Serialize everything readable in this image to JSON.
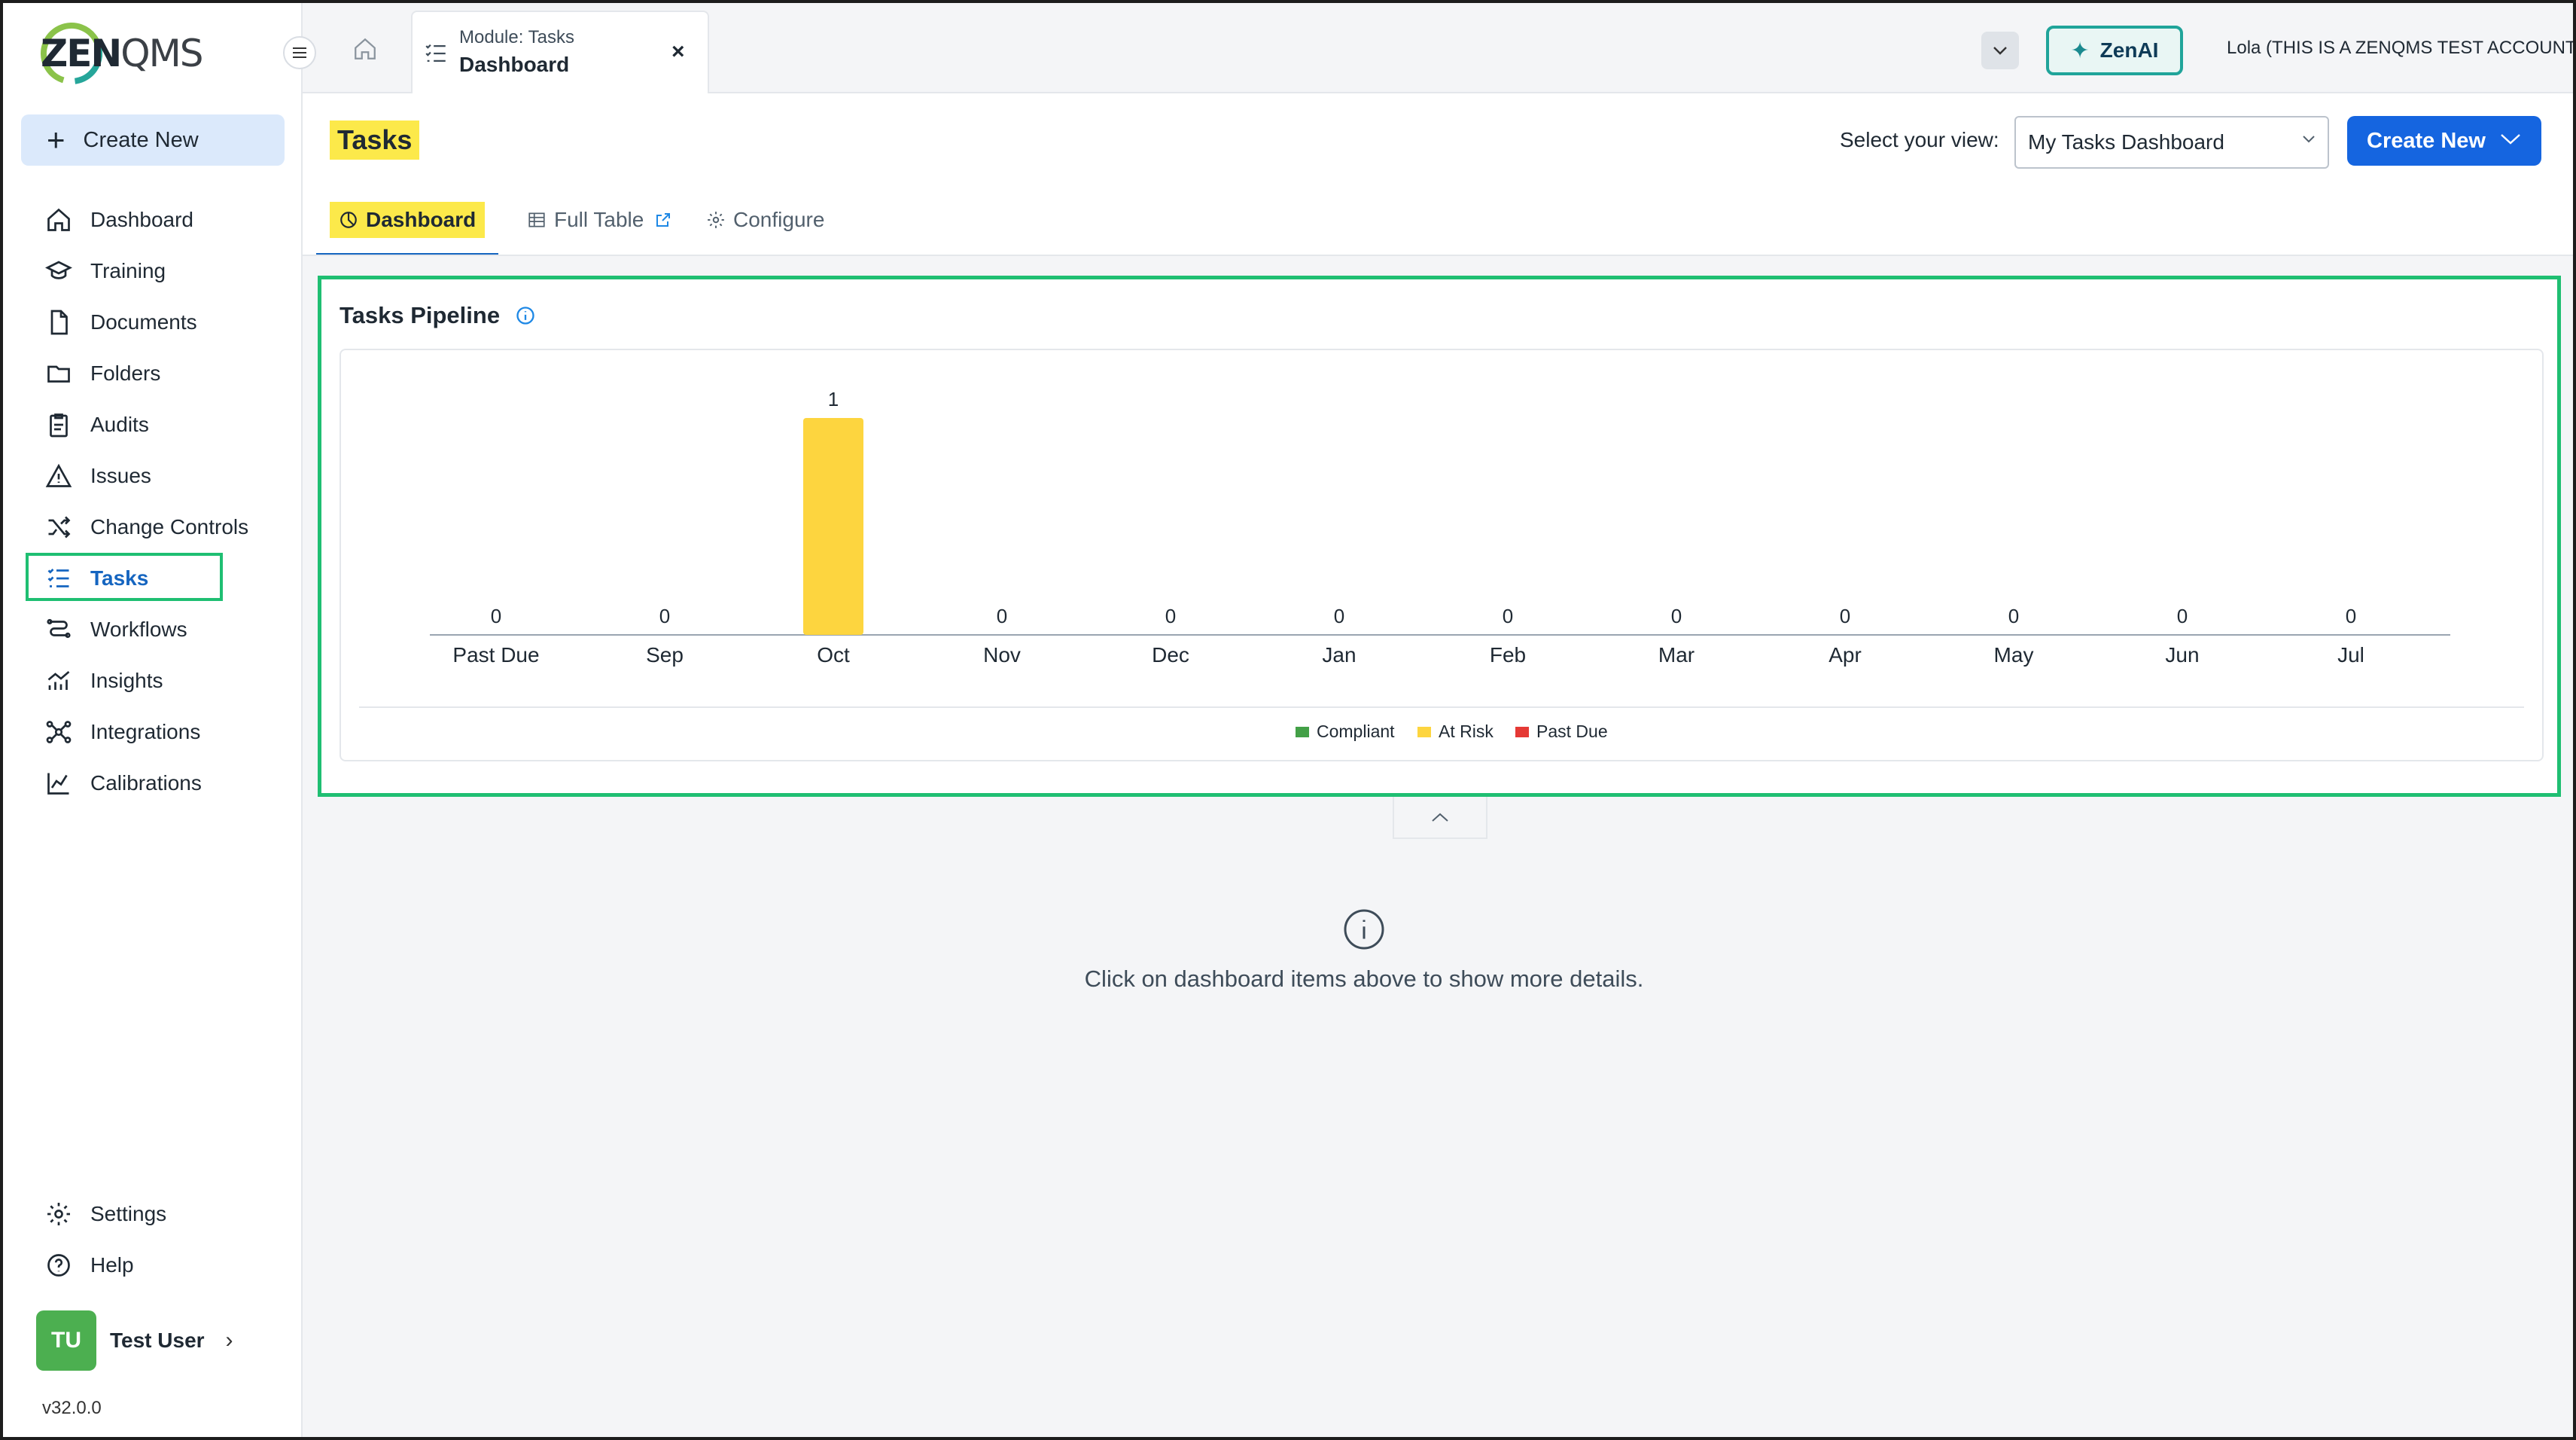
{
  "app": {
    "logo": {
      "zen": "ZEN",
      "qms": "QMS"
    },
    "account_label": "Lola (THIS IS A ZENQMS TEST ACCOUNT)",
    "zenai_label": "ZenAI"
  },
  "topbar": {
    "module_label": "Module: Tasks",
    "module_title": "Dashboard",
    "close_label": "×"
  },
  "sidebar": {
    "create_new_label": "Create New",
    "items": [
      {
        "label": "Dashboard",
        "icon": "home-icon"
      },
      {
        "label": "Training",
        "icon": "graduation-cap-icon"
      },
      {
        "label": "Documents",
        "icon": "document-icon"
      },
      {
        "label": "Folders",
        "icon": "folder-icon"
      },
      {
        "label": "Audits",
        "icon": "clipboard-icon"
      },
      {
        "label": "Issues",
        "icon": "warning-icon"
      },
      {
        "label": "Change Controls",
        "icon": "shuffle-icon"
      },
      {
        "label": "Tasks",
        "icon": "tasks-icon",
        "active": true
      },
      {
        "label": "Workflows",
        "icon": "workflow-icon"
      },
      {
        "label": "Insights",
        "icon": "insights-icon"
      },
      {
        "label": "Integrations",
        "icon": "integrations-icon"
      },
      {
        "label": "Calibrations",
        "icon": "calibrations-icon"
      }
    ],
    "bottom_items": [
      {
        "label": "Settings",
        "icon": "gear-icon"
      },
      {
        "label": "Help",
        "icon": "help-icon"
      }
    ],
    "user": {
      "initials": "TU",
      "name": "Test User"
    },
    "version": "v32.0.0"
  },
  "page": {
    "title": "Tasks",
    "view_label": "Select your view:",
    "view_selected": "My Tasks Dashboard",
    "create_new_label": "Create New",
    "tabs": [
      {
        "label": "Dashboard",
        "icon": "dashboard-icon",
        "active": true
      },
      {
        "label": "Full Table",
        "icon": "table-icon",
        "external": true
      },
      {
        "label": "Configure",
        "icon": "gear-icon"
      }
    ],
    "pipeline_title": "Tasks Pipeline",
    "details_hint": "Click on dashboard items above to show more details."
  },
  "colors": {
    "accent": "#1565e0",
    "highlight": "#fce94a",
    "focus_outline": "#1fbf72",
    "compliant": "#43a047",
    "at_risk": "#fdd53f",
    "past_due": "#e53935"
  },
  "chart_data": {
    "type": "bar",
    "title": "Tasks Pipeline",
    "categories": [
      "Past Due",
      "Sep",
      "Oct",
      "Nov",
      "Dec",
      "Jan",
      "Feb",
      "Mar",
      "Apr",
      "May",
      "Jun",
      "Jul"
    ],
    "series": [
      {
        "name": "Compliant",
        "color": "#43a047",
        "values": [
          0,
          0,
          0,
          0,
          0,
          0,
          0,
          0,
          0,
          0,
          0,
          0
        ]
      },
      {
        "name": "At Risk",
        "color": "#fdd53f",
        "values": [
          0,
          0,
          1,
          0,
          0,
          0,
          0,
          0,
          0,
          0,
          0,
          0
        ]
      },
      {
        "name": "Past Due",
        "color": "#e53935",
        "values": [
          0,
          0,
          0,
          0,
          0,
          0,
          0,
          0,
          0,
          0,
          0,
          0
        ]
      }
    ],
    "totals": [
      0,
      0,
      1,
      0,
      0,
      0,
      0,
      0,
      0,
      0,
      0,
      0
    ],
    "stacked": true,
    "ylim": [
      0,
      1
    ],
    "grid": false,
    "legend_position": "bottom-center"
  }
}
